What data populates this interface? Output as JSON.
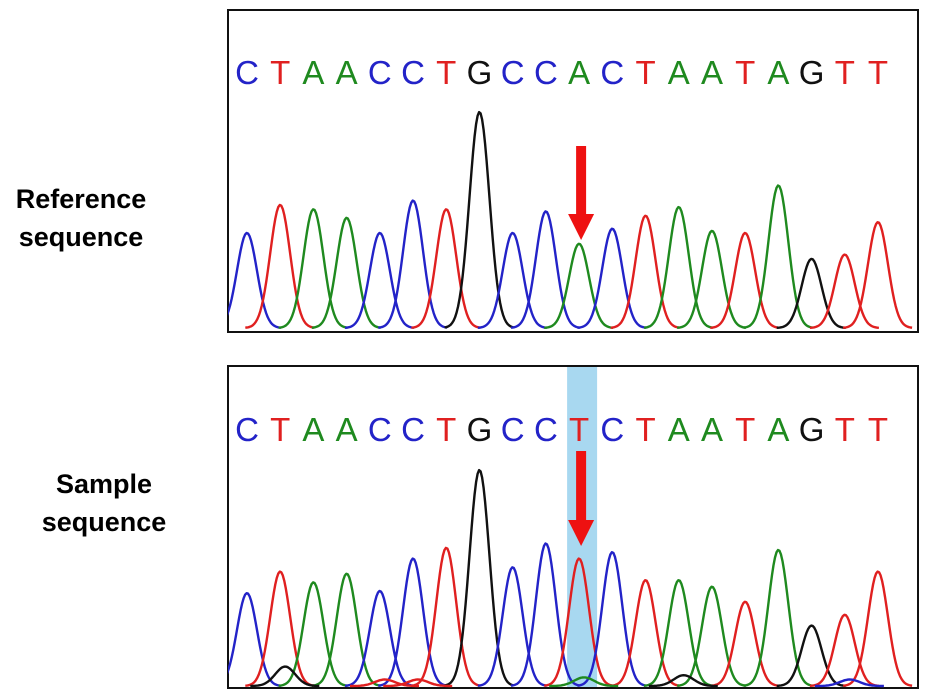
{
  "labels": {
    "reference": [
      "Reference",
      "sequence"
    ],
    "sample": [
      "Sample",
      "sequence"
    ]
  },
  "colors": {
    "A": "#1f8a1f",
    "C": "#2323c8",
    "G": "#111111",
    "T": "#e02020",
    "arrow": "#ee1111",
    "highlight": "#a8d8f0"
  },
  "chart_data": [
    {
      "type": "line",
      "name": "reference",
      "bases": [
        "C",
        "T",
        "A",
        "A",
        "C",
        "C",
        "T",
        "G",
        "C",
        "C",
        "A",
        "C",
        "T",
        "A",
        "A",
        "T",
        "A",
        "G",
        "T",
        "T"
      ],
      "peaks": [
        {
          "base": "C",
          "height": 0.44
        },
        {
          "base": "T",
          "height": 0.57
        },
        {
          "base": "A",
          "height": 0.55
        },
        {
          "base": "A",
          "height": 0.51
        },
        {
          "base": "C",
          "height": 0.44
        },
        {
          "base": "C",
          "height": 0.59
        },
        {
          "base": "T",
          "height": 0.55
        },
        {
          "base": "G",
          "height": 1.0
        },
        {
          "base": "C",
          "height": 0.44
        },
        {
          "base": "C",
          "height": 0.54
        },
        {
          "base": "A",
          "height": 0.39
        },
        {
          "base": "C",
          "height": 0.46
        },
        {
          "base": "T",
          "height": 0.52
        },
        {
          "base": "A",
          "height": 0.56
        },
        {
          "base": "A",
          "height": 0.45
        },
        {
          "base": "T",
          "height": 0.44
        },
        {
          "base": "A",
          "height": 0.66
        },
        {
          "base": "G",
          "height": 0.32
        },
        {
          "base": "T",
          "height": 0.34
        },
        {
          "base": "T",
          "height": 0.49
        }
      ],
      "arrow_index": 10
    },
    {
      "type": "line",
      "name": "sample",
      "bases": [
        "C",
        "T",
        "A",
        "A",
        "C",
        "C",
        "T",
        "G",
        "C",
        "C",
        "T",
        "C",
        "T",
        "A",
        "A",
        "T",
        "A",
        "G",
        "T",
        "T"
      ],
      "peaks": [
        {
          "base": "C",
          "height": 0.43
        },
        {
          "base": "T",
          "height": 0.53
        },
        {
          "base": "A",
          "height": 0.48
        },
        {
          "base": "A",
          "height": 0.52
        },
        {
          "base": "C",
          "height": 0.44
        },
        {
          "base": "C",
          "height": 0.59
        },
        {
          "base": "T",
          "height": 0.64
        },
        {
          "base": "G",
          "height": 1.0
        },
        {
          "base": "C",
          "height": 0.55
        },
        {
          "base": "C",
          "height": 0.66
        },
        {
          "base": "T",
          "height": 0.59
        },
        {
          "base": "C",
          "height": 0.62
        },
        {
          "base": "T",
          "height": 0.49
        },
        {
          "base": "A",
          "height": 0.49
        },
        {
          "base": "A",
          "height": 0.46
        },
        {
          "base": "T",
          "height": 0.39
        },
        {
          "base": "A",
          "height": 0.63
        },
        {
          "base": "G",
          "height": 0.28
        },
        {
          "base": "T",
          "height": 0.33
        },
        {
          "base": "T",
          "height": 0.53
        }
      ],
      "minor_peaks": [
        {
          "base": "G",
          "index": 1,
          "height": 0.09
        },
        {
          "base": "T",
          "index": 4,
          "height": 0.03
        },
        {
          "base": "T",
          "index": 5,
          "height": 0.03
        },
        {
          "base": "A",
          "index": 10,
          "height": 0.04
        },
        {
          "base": "G",
          "index": 13,
          "height": 0.05
        },
        {
          "base": "C",
          "index": 18,
          "height": 0.03
        }
      ],
      "arrow_index": 10,
      "highlight_index": 10
    }
  ]
}
